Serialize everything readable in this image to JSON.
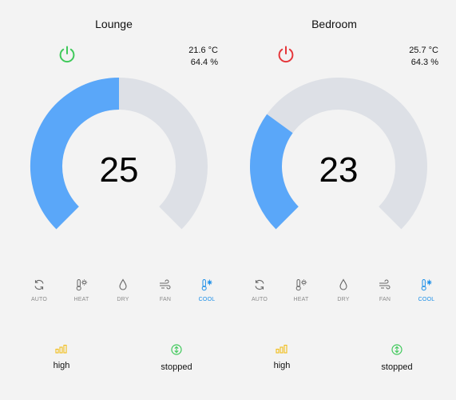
{
  "colors": {
    "accent_blue": "#5aa7f9",
    "track_gray": "#dde0e6",
    "power_on": "#3fc95a",
    "power_off": "#e5363a",
    "mode_active": "#1a8ee8",
    "fan_yellow": "#f2bd1c",
    "swing_green": "#3fc95a"
  },
  "thermostats": [
    {
      "name": "Lounge",
      "power": "on",
      "current_temperature": "21.6 °C",
      "current_humidity": "64.4 %",
      "target_temperature": "25",
      "gauge_fraction": 0.5,
      "modes": [
        {
          "label": "AUTO",
          "icon": "auto-icon",
          "active": false
        },
        {
          "label": "HEAT",
          "icon": "heat-icon",
          "active": false
        },
        {
          "label": "DRY",
          "icon": "dry-icon",
          "active": false
        },
        {
          "label": "FAN",
          "icon": "fan-icon",
          "active": false
        },
        {
          "label": "COOL",
          "icon": "cool-icon",
          "active": true
        }
      ],
      "fan_speed": "high",
      "swing": "stopped"
    },
    {
      "name": "Bedroom",
      "power": "off",
      "current_temperature": "25.7 °C",
      "current_humidity": "64.3 %",
      "target_temperature": "23",
      "gauge_fraction": 0.3,
      "modes": [
        {
          "label": "AUTO",
          "icon": "auto-icon",
          "active": false
        },
        {
          "label": "HEAT",
          "icon": "heat-icon",
          "active": false
        },
        {
          "label": "DRY",
          "icon": "dry-icon",
          "active": false
        },
        {
          "label": "FAN",
          "icon": "fan-icon",
          "active": false
        },
        {
          "label": "COOL",
          "icon": "cool-icon",
          "active": true
        }
      ],
      "fan_speed": "high",
      "swing": "stopped"
    }
  ]
}
